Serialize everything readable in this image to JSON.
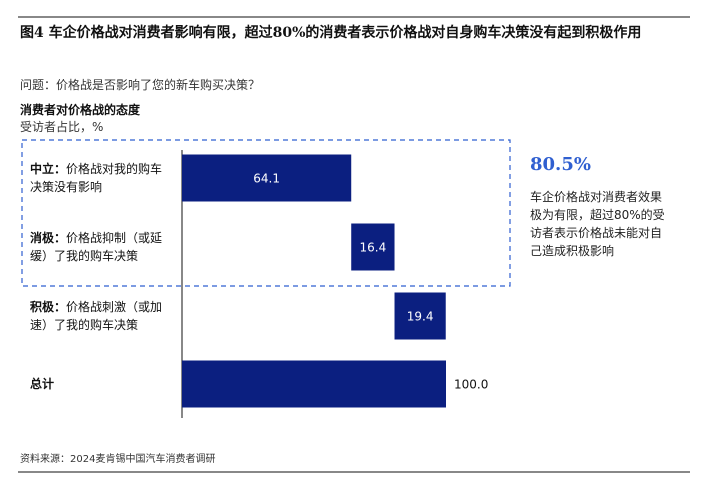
{
  "chart_data": {
    "type": "waterfall",
    "title": "图4 车企价格战对消费者影响有限，超过80%的消费者表示价格战对自身购车决策没有起到积极作用",
    "subtitle": "问题：价格战是否影响了您的新车购买决策？",
    "axis_title": "消费者对价格战的态度",
    "axis_unit": "受访者占比，%",
    "categories": [
      "中立：",
      "消极：",
      "积极：",
      "总计"
    ],
    "category_notes": [
      "价格战对我的购车决策没有影响",
      "价格战抑制（或延缓）了我的购车决策",
      "价格战刺激（或加速）了我的购车决策",
      null
    ],
    "values": [
      64.1,
      16.4,
      19.4,
      100
    ],
    "value_labels": [
      "64.1",
      "16.4",
      "19.4",
      "100.0"
    ],
    "total_index": 3,
    "color": "#0b1f80",
    "xlim": [
      0,
      100
    ],
    "highlight": {
      "value": 80.5,
      "label": "80.5%",
      "text": "车企价格战对消费者效果极为有限，超过80%的受访者表示价格战未能对自己造成积极影响"
    },
    "source": "资料来源：2024麦肯锡中国汽车消费者调研"
  }
}
